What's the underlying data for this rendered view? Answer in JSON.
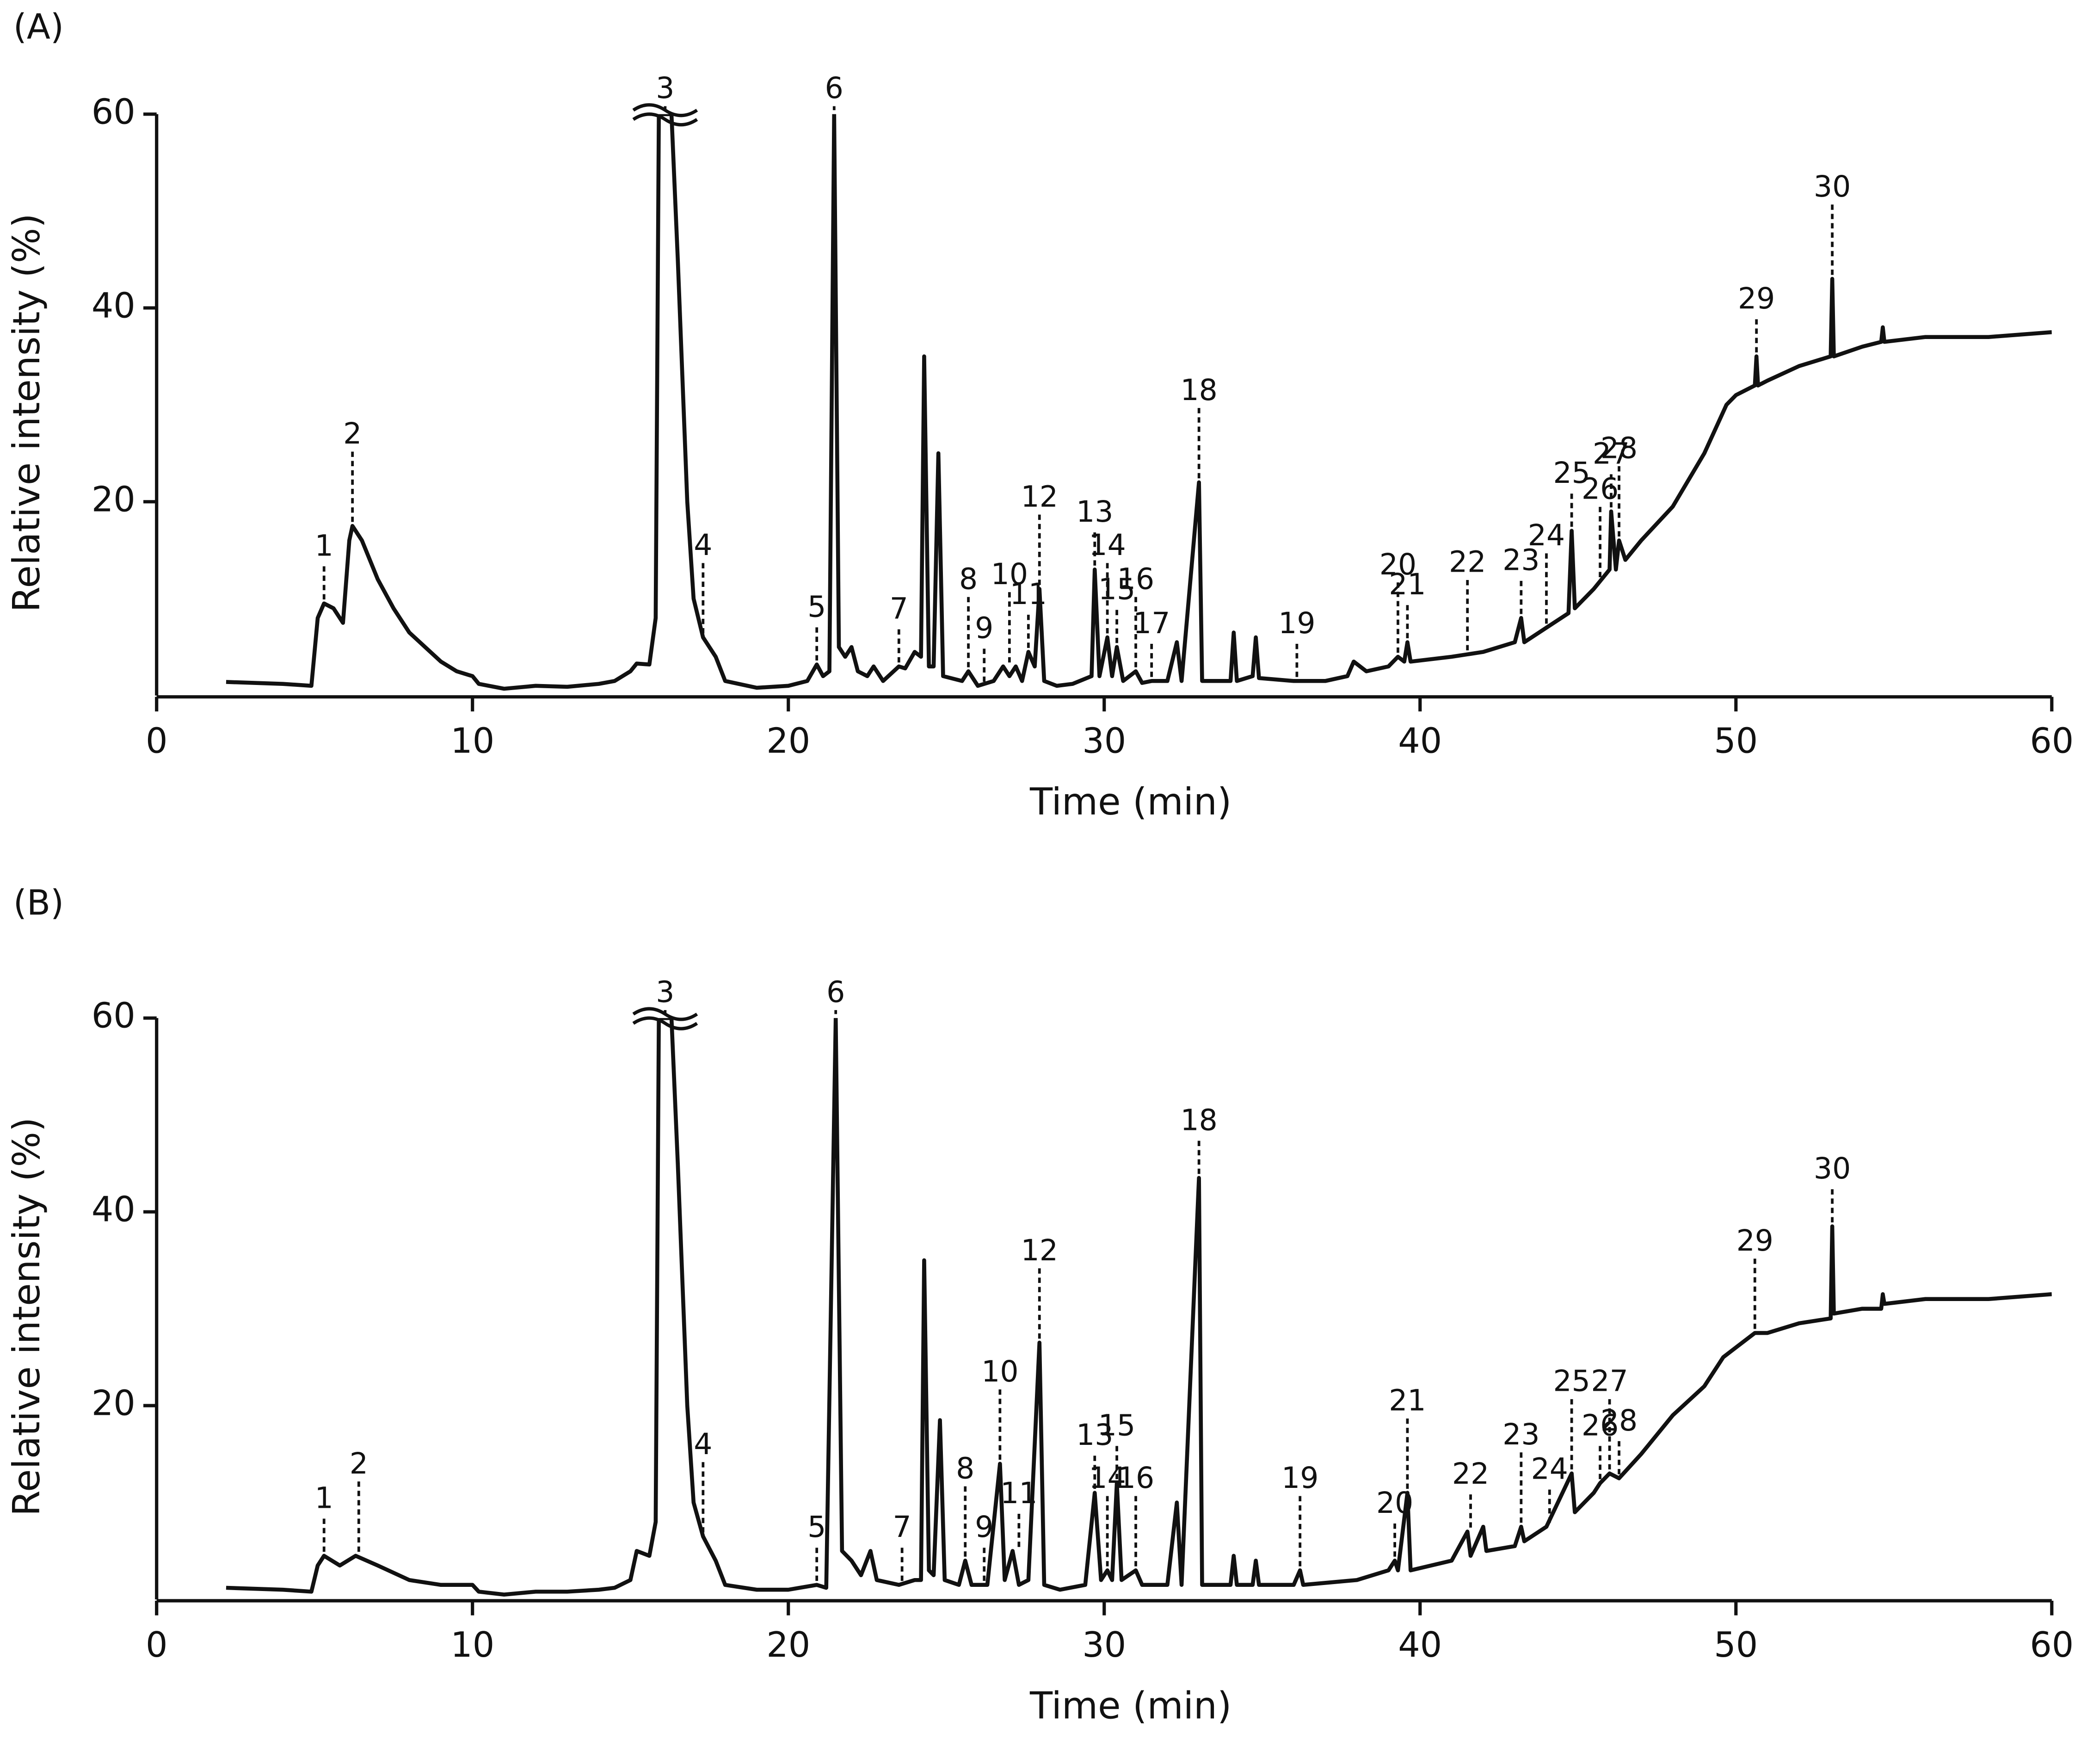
{
  "chart_data": [
    {
      "type": "line",
      "title": "(A)",
      "xlabel": "Time (min)",
      "ylabel": "Relative intensity (%)",
      "color": "#111111",
      "xlim": [
        0,
        60
      ],
      "ylim": [
        0,
        60
      ],
      "xticks": [
        0,
        10,
        20,
        30,
        40,
        50,
        60
      ],
      "yticks": [
        20,
        40,
        60
      ],
      "x": [
        2.2,
        4.0,
        4.9,
        5.1,
        5.3,
        5.6,
        5.9,
        6.1,
        6.2,
        6.5,
        7,
        7.5,
        8,
        8.5,
        9,
        9.5,
        10,
        10.2,
        11,
        12,
        13,
        14,
        14.5,
        15,
        15.2,
        15.6,
        15.8,
        15.9,
        16.3,
        16.5,
        16.8,
        17,
        17.3,
        17.7,
        18,
        19,
        20,
        20.6,
        20.9,
        21.1,
        21.3,
        21.45,
        21.6,
        21.8,
        22,
        22.2,
        22.5,
        22.7,
        23,
        23.5,
        23.7,
        24,
        24.2,
        24.3,
        24.45,
        24.6,
        24.75,
        24.9,
        25.5,
        25.7,
        26,
        26.5,
        26.8,
        27,
        27.2,
        27.4,
        27.6,
        27.8,
        27.95,
        28.1,
        28.5,
        29,
        29.6,
        29.7,
        29.85,
        30.1,
        30.25,
        30.4,
        30.6,
        31,
        31.2,
        31.5,
        32,
        32.3,
        32.45,
        33,
        33.1,
        34,
        34.1,
        34.2,
        34.7,
        34.8,
        34.9,
        36,
        37,
        37.7,
        37.9,
        38.3,
        39,
        39.3,
        39.5,
        39.6,
        39.7,
        41,
        42,
        43,
        43.2,
        43.3,
        44,
        44.7,
        44.8,
        44.9,
        45.5,
        46,
        46.05,
        46.2,
        46.3,
        46.5,
        47,
        48,
        49,
        49.7,
        50,
        50.6,
        50.65,
        50.7,
        51,
        52,
        53,
        53.05,
        53.1,
        54,
        54.6,
        54.65,
        54.7,
        56,
        58,
        60
      ],
      "values": [
        1.4,
        1.2,
        1.0,
        8,
        9.5,
        9,
        7.5,
        16,
        17.5,
        16,
        12,
        9,
        6.5,
        5,
        3.5,
        2.5,
        2,
        1.2,
        0.7,
        1,
        0.9,
        1.2,
        1.5,
        2.5,
        3.3,
        3.2,
        8,
        60,
        60,
        45,
        20,
        10,
        6,
        4,
        1.5,
        0.8,
        1,
        1.5,
        3.2,
        2,
        2.5,
        60,
        5,
        4,
        5,
        2.5,
        2,
        3,
        1.5,
        3,
        2.8,
        4.5,
        4,
        35,
        3,
        3,
        25,
        2,
        1.5,
        2.5,
        1,
        1.5,
        3,
        2,
        3,
        1.5,
        4.5,
        3,
        11,
        1.5,
        1,
        1.2,
        2,
        13,
        2,
        6,
        2,
        5,
        1.5,
        2.5,
        1.3,
        1.5,
        1.5,
        5.5,
        1.5,
        22,
        1.5,
        1.5,
        6.5,
        1.5,
        2,
        6,
        1.8,
        1.5,
        1.5,
        2,
        3.5,
        2.5,
        3,
        4,
        3.5,
        5.5,
        3.5,
        4,
        4.5,
        5.5,
        8,
        5.5,
        7,
        8.5,
        17,
        9,
        11,
        13,
        19,
        13,
        16,
        14,
        16,
        19.5,
        25,
        30,
        31,
        32,
        35,
        32,
        32.5,
        34,
        35,
        43,
        35,
        36,
        36.5,
        38,
        36.5,
        37,
        37,
        37.5
      ],
      "annotations": [
        {
          "text": "1",
          "x": 5.3
        },
        {
          "text": "2",
          "x": 6.2
        },
        {
          "text": "3",
          "x": 16.1
        },
        {
          "text": "4",
          "x": 17.3
        },
        {
          "text": "5",
          "x": 20.9
        },
        {
          "text": "6",
          "x": 21.45
        },
        {
          "text": "7",
          "x": 23.5
        },
        {
          "text": "8",
          "x": 25.7
        },
        {
          "text": "9",
          "x": 26.2
        },
        {
          "text": "10",
          "x": 27.0
        },
        {
          "text": "11",
          "x": 27.6
        },
        {
          "text": "12",
          "x": 27.95
        },
        {
          "text": "13",
          "x": 29.7
        },
        {
          "text": "14",
          "x": 30.1
        },
        {
          "text": "15",
          "x": 30.4
        },
        {
          "text": "16",
          "x": 31.0
        },
        {
          "text": "17",
          "x": 31.5
        },
        {
          "text": "18",
          "x": 33
        },
        {
          "text": "19",
          "x": 36.1
        },
        {
          "text": "20",
          "x": 39.3
        },
        {
          "text": "21",
          "x": 39.6
        },
        {
          "text": "22",
          "x": 41.5
        },
        {
          "text": "23",
          "x": 43.2
        },
        {
          "text": "24",
          "x": 44.0
        },
        {
          "text": "25",
          "x": 44.8
        },
        {
          "text": "26",
          "x": 45.7
        },
        {
          "text": "27",
          "x": 46.05
        },
        {
          "text": "28",
          "x": 46.3
        },
        {
          "text": "29",
          "x": 50.65
        },
        {
          "text": "30",
          "x": 53.05
        }
      ]
    },
    {
      "type": "line",
      "title": "(B)",
      "xlabel": "Time (min)",
      "ylabel": "Relative intensity (%)",
      "color": "#111111",
      "xlim": [
        0,
        60
      ],
      "ylim": [
        0,
        60
      ],
      "xticks": [
        0,
        10,
        20,
        30,
        40,
        50,
        60
      ],
      "yticks": [
        20,
        40,
        60
      ],
      "x": [
        2.2,
        4.0,
        4.9,
        5.1,
        5.3,
        5.8,
        6.3,
        7,
        8,
        9,
        10,
        10.2,
        11,
        12,
        13,
        14,
        14.5,
        15,
        15.2,
        15.6,
        15.8,
        15.9,
        16.3,
        16.5,
        16.8,
        17,
        17.3,
        17.7,
        18,
        19,
        20,
        20.9,
        21.2,
        21.5,
        21.7,
        22,
        22.3,
        22.6,
        22.8,
        23.5,
        24,
        24.2,
        24.3,
        24.45,
        24.6,
        24.8,
        24.95,
        25.4,
        25.6,
        25.8,
        26.3,
        26.7,
        26.85,
        27.1,
        27.3,
        27.6,
        27.95,
        28.1,
        28.6,
        29.4,
        29.7,
        29.9,
        30.1,
        30.25,
        30.4,
        30.55,
        31,
        31.2,
        32,
        32.3,
        32.45,
        33,
        33.1,
        34,
        34.1,
        34.2,
        34.7,
        34.8,
        34.9,
        36,
        36.2,
        36.3,
        38,
        39,
        39.2,
        39.3,
        39.6,
        39.7,
        41,
        41.5,
        41.6,
        42,
        42.1,
        43,
        43.2,
        43.3,
        44,
        44.8,
        44.9,
        45.5,
        45.7,
        46,
        46.3,
        47,
        48,
        49,
        49.6,
        50,
        50.6,
        51,
        52,
        53,
        53.05,
        53.1,
        54,
        54.6,
        54.65,
        54.7,
        56,
        58,
        60
      ],
      "values": [
        1.2,
        1.0,
        0.8,
        3.5,
        4.5,
        3.5,
        4.5,
        3.5,
        2,
        1.5,
        1.5,
        0.8,
        0.5,
        0.8,
        0.8,
        1,
        1.2,
        2,
        5,
        4.5,
        8,
        60,
        60,
        45,
        20,
        10,
        6.5,
        4,
        1.5,
        1,
        1,
        1.5,
        1.2,
        60,
        5,
        4,
        2.5,
        5,
        2,
        1.5,
        2,
        2,
        35,
        3,
        2.5,
        18.5,
        2,
        1.5,
        4,
        1.5,
        1.5,
        14,
        2,
        5,
        1.5,
        2,
        26.5,
        1.5,
        1,
        1.5,
        11,
        2,
        3,
        2,
        12,
        2,
        3,
        1.5,
        1.5,
        10,
        1.5,
        43.5,
        1.5,
        1.5,
        4.5,
        1.5,
        1.5,
        4,
        1.5,
        1.5,
        3,
        1.5,
        2,
        3,
        4,
        3,
        11,
        3,
        4,
        7,
        4.5,
        7.5,
        5,
        5.5,
        7.5,
        6,
        7.5,
        13,
        9,
        11,
        12,
        13,
        12.5,
        15,
        19,
        22,
        25,
        26,
        27.5,
        27.5,
        28.5,
        29,
        38.5,
        29.5,
        30,
        30,
        31.5,
        30.5,
        31,
        31,
        31.5
      ],
      "annotations": [
        {
          "text": "1",
          "x": 5.3
        },
        {
          "text": "2",
          "x": 6.4
        },
        {
          "text": "3",
          "x": 16.1
        },
        {
          "text": "4",
          "x": 17.3
        },
        {
          "text": "5",
          "x": 20.9
        },
        {
          "text": "6",
          "x": 21.5
        },
        {
          "text": "7",
          "x": 23.6
        },
        {
          "text": "8",
          "x": 25.6
        },
        {
          "text": "9",
          "x": 26.2
        },
        {
          "text": "10",
          "x": 26.7
        },
        {
          "text": "11",
          "x": 27.3
        },
        {
          "text": "12",
          "x": 27.95
        },
        {
          "text": "13",
          "x": 29.7
        },
        {
          "text": "14",
          "x": 30.1
        },
        {
          "text": "15",
          "x": 30.4
        },
        {
          "text": "16",
          "x": 31.0
        },
        {
          "text": "18",
          "x": 33
        },
        {
          "text": "19",
          "x": 36.2
        },
        {
          "text": "20",
          "x": 39.2
        },
        {
          "text": "21",
          "x": 39.6
        },
        {
          "text": "22",
          "x": 41.6
        },
        {
          "text": "23",
          "x": 43.2
        },
        {
          "text": "24",
          "x": 44.1
        },
        {
          "text": "25",
          "x": 44.8
        },
        {
          "text": "26",
          "x": 45.7
        },
        {
          "text": "27",
          "x": 46.0
        },
        {
          "text": "28",
          "x": 46.3
        },
        {
          "text": "29",
          "x": 50.6
        },
        {
          "text": "30",
          "x": 53.05
        }
      ]
    }
  ]
}
